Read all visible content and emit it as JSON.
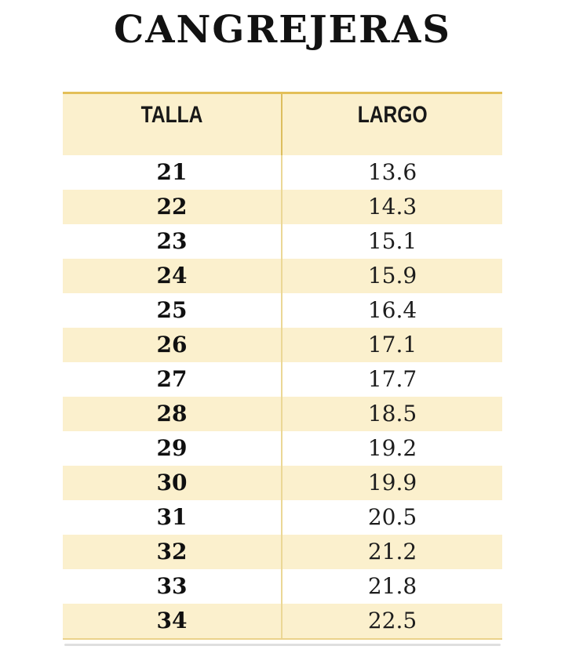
{
  "title": "CANGREJERAS",
  "table": {
    "columns": [
      "TALLA",
      "LARGO"
    ],
    "rows": [
      {
        "talla": "21",
        "largo": "13.6"
      },
      {
        "talla": "22",
        "largo": "14.3"
      },
      {
        "talla": "23",
        "largo": "15.1"
      },
      {
        "talla": "24",
        "largo": "15.9"
      },
      {
        "talla": "25",
        "largo": "16.4"
      },
      {
        "talla": "26",
        "largo": "17.1"
      },
      {
        "talla": "27",
        "largo": "17.7"
      },
      {
        "talla": "28",
        "largo": "18.5"
      },
      {
        "talla": "29",
        "largo": "19.2"
      },
      {
        "talla": "30",
        "largo": "19.9"
      },
      {
        "talla": "31",
        "largo": "20.5"
      },
      {
        "talla": "32",
        "largo": "21.2"
      },
      {
        "talla": "33",
        "largo": "21.8"
      },
      {
        "talla": "34",
        "largo": "22.5"
      }
    ]
  },
  "colors": {
    "row_stripe": "#FBF0CD",
    "header_background": "#FBF0CD",
    "header_top_border": "#E3BF58",
    "column_divider_header": "#DDBE5E",
    "column_divider_body": "#EBD795",
    "table_bottom_border": "#EBD28A",
    "text": "#151515"
  },
  "chart_data": {
    "type": "table",
    "title": "CANGREJERAS",
    "columns": [
      "TALLA",
      "LARGO"
    ],
    "rows": [
      [
        21,
        13.6
      ],
      [
        22,
        14.3
      ],
      [
        23,
        15.1
      ],
      [
        24,
        15.9
      ],
      [
        25,
        16.4
      ],
      [
        26,
        17.1
      ],
      [
        27,
        17.7
      ],
      [
        28,
        18.5
      ],
      [
        29,
        19.2
      ],
      [
        30,
        19.9
      ],
      [
        31,
        20.5
      ],
      [
        32,
        21.2
      ],
      [
        33,
        21.8
      ],
      [
        34,
        22.5
      ]
    ],
    "layout": {
      "striped_rows": true,
      "stripe_color": "#FBF0CD",
      "first_data_row_background": "white"
    }
  }
}
